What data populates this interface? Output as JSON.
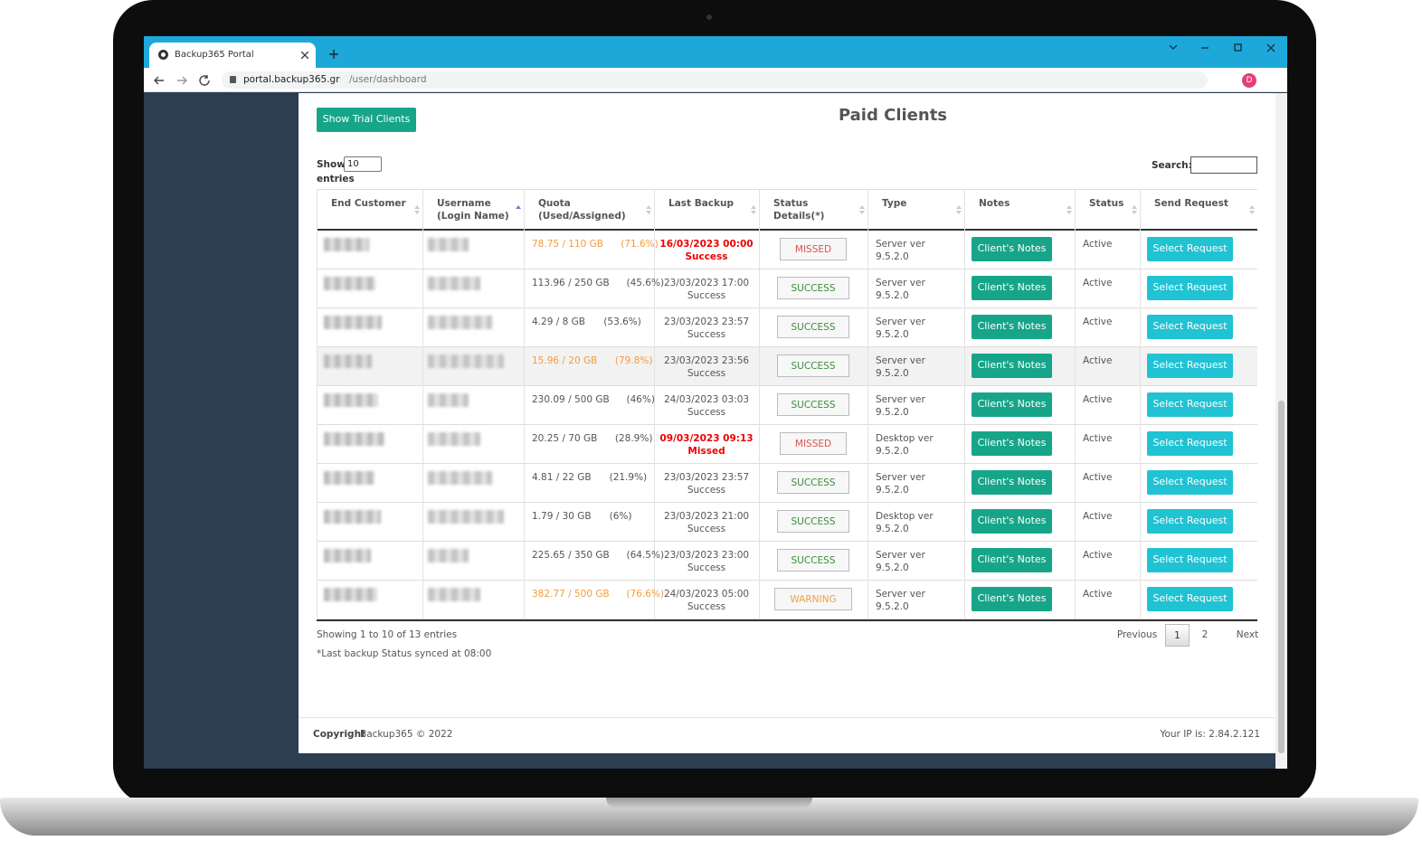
{
  "browser": {
    "tab_title": "Backup365 Portal",
    "url_host": "portal.backup365.gr",
    "url_path": "/user/dashboard",
    "profile_initial": "D"
  },
  "page": {
    "trial_button": "Show Trial Clients",
    "title": "Paid Clients",
    "length_prefix": "Show",
    "length_value": "10",
    "length_suffix": "entries",
    "search_label": "Search:"
  },
  "table": {
    "columns": [
      "End Customer",
      "Username\n(Login Name)",
      "Quota\n(Used/Assigned)",
      "Last Backup",
      "Status Details(*)",
      "Type",
      "Notes",
      "Status",
      "Send Request"
    ],
    "notes_button": "Client's Notes",
    "request_button": "Select Request",
    "rows": [
      {
        "quota": "78.75 / 110 GB",
        "percent": "(71.6%)",
        "quota_level": "warn",
        "backup_date": "16/03/2023 00:00",
        "backup_result": "Success",
        "backup_level": "alert",
        "status_detail": "MISSED",
        "type": "Server ver 9.5.2.0",
        "status": "Active"
      },
      {
        "quota": "113.96 / 250 GB",
        "percent": "(45.6%)",
        "quota_level": "normal",
        "backup_date": "23/03/2023 17:00",
        "backup_result": "Success",
        "backup_level": "normal",
        "status_detail": "SUCCESS",
        "type": "Server ver 9.5.2.0",
        "status": "Active"
      },
      {
        "quota": "4.29 / 8 GB",
        "percent": "(53.6%)",
        "quota_level": "normal",
        "backup_date": "23/03/2023 23:57",
        "backup_result": "Success",
        "backup_level": "normal",
        "status_detail": "SUCCESS",
        "type": "Server ver 9.5.2.0",
        "status": "Active"
      },
      {
        "quota": "15.96 / 20 GB",
        "percent": "(79.8%)",
        "quota_level": "warn",
        "backup_date": "23/03/2023 23:56",
        "backup_result": "Success",
        "backup_level": "normal",
        "status_detail": "SUCCESS",
        "type": "Server ver 9.5.2.0",
        "status": "Active"
      },
      {
        "quota": "230.09 / 500 GB",
        "percent": "(46%)",
        "quota_level": "normal",
        "backup_date": "24/03/2023 03:03",
        "backup_result": "Success",
        "backup_level": "normal",
        "status_detail": "SUCCESS",
        "type": "Server ver 9.5.2.0",
        "status": "Active"
      },
      {
        "quota": "20.25 / 70 GB",
        "percent": "(28.9%)",
        "quota_level": "normal",
        "backup_date": "09/03/2023 09:13",
        "backup_result": "Missed",
        "backup_level": "alert",
        "status_detail": "MISSED",
        "type": "Desktop ver 9.5.2.0",
        "status": "Active"
      },
      {
        "quota": "4.81 / 22 GB",
        "percent": "(21.9%)",
        "quota_level": "normal",
        "backup_date": "23/03/2023 23:57",
        "backup_result": "Success",
        "backup_level": "normal",
        "status_detail": "SUCCESS",
        "type": "Server ver 9.5.2.0",
        "status": "Active"
      },
      {
        "quota": "1.79 / 30 GB",
        "percent": "(6%)",
        "quota_level": "normal",
        "backup_date": "23/03/2023 21:00",
        "backup_result": "Success",
        "backup_level": "normal",
        "status_detail": "SUCCESS",
        "type": "Desktop ver 9.5.2.0",
        "status": "Active"
      },
      {
        "quota": "225.65 / 350 GB",
        "percent": "(64.5%)",
        "quota_level": "normal",
        "backup_date": "23/03/2023 23:00",
        "backup_result": "Success",
        "backup_level": "normal",
        "status_detail": "SUCCESS",
        "type": "Server ver 9.5.2.0",
        "status": "Active"
      },
      {
        "quota": "382.77 / 500 GB",
        "percent": "(76.6%)",
        "quota_level": "warn",
        "backup_date": "24/03/2023 05:00",
        "backup_result": "Success",
        "backup_level": "normal",
        "status_detail": "WARNING",
        "type": "Server ver 9.5.2.0",
        "status": "Active"
      }
    ]
  },
  "footer": {
    "info": "Showing 1 to 10 of 13 entries",
    "note": "*Last backup Status synced at 08:00",
    "pagination": [
      "Previous",
      "1",
      "2",
      "Next"
    ],
    "copyright_label": "Copyright",
    "copyright_text": "Backup365 © 2022",
    "ip": "Your IP is: 2.84.2.121"
  }
}
